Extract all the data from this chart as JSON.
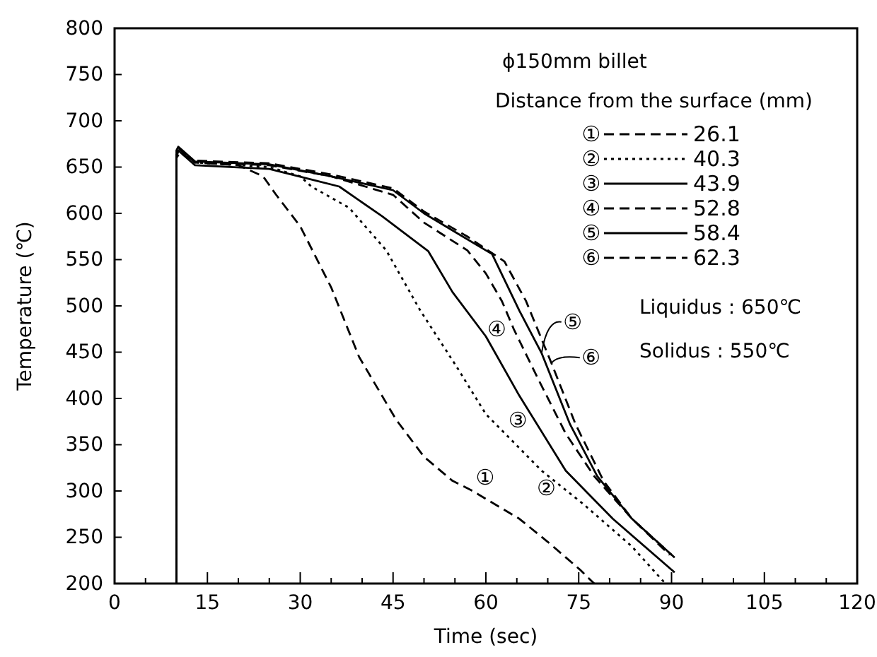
{
  "chart_data": {
    "type": "line",
    "subtitle": "ϕ150mm billet",
    "legend_title": "Distance from the surface (mm)",
    "xlabel": "Time (sec)",
    "ylabel": "Temperature (℃)",
    "xlim": [
      0,
      120
    ],
    "ylim": [
      200,
      800
    ],
    "xticks": [
      0,
      {
        "value": 5,
        "label": null
      },
      {
        "value": 10,
        "label": null
      },
      15,
      {
        "value": 20,
        "label": null
      },
      {
        "value": 25,
        "label": null
      },
      30,
      {
        "value": 35,
        "label": null
      },
      {
        "value": 40,
        "label": null
      },
      45,
      {
        "value": 50,
        "label": null
      },
      {
        "value": 55,
        "label": null
      },
      60,
      {
        "value": 65,
        "label": null
      },
      {
        "value": 70,
        "label": null
      },
      75,
      {
        "value": 80,
        "label": null
      },
      {
        "value": 85,
        "label": null
      },
      90,
      {
        "value": 95,
        "label": null
      },
      {
        "value": 100,
        "label": null
      },
      105,
      {
        "value": 110,
        "label": null
      },
      {
        "value": 115,
        "label": null
      },
      120
    ],
    "yticks": [
      200,
      250,
      300,
      350,
      400,
      450,
      500,
      550,
      600,
      650,
      700,
      750,
      800
    ],
    "grid": false,
    "legend": "top right",
    "marker": "none",
    "series": [
      {
        "name": "26.1",
        "color": "#000000",
        "line_style": "dashed",
        "x": [
          10,
          10,
          10.5,
          13,
          20,
          24,
          26,
          30,
          35,
          39.5,
          45.5,
          50,
          54.6,
          57.6,
          65.4,
          70,
          75.2,
          77.5
        ],
        "values": [
          200,
          665,
          670,
          655,
          652,
          640,
          621,
          586,
          520,
          445,
          377,
          337,
          311,
          301,
          270,
          245,
          215,
          200
        ]
      },
      {
        "name": "40.3",
        "color": "#000000",
        "line_style": "dotted",
        "x": [
          10,
          10,
          10.5,
          13,
          25,
          30,
          31.8,
          37.9,
          43.9,
          49.4,
          55.3,
          60,
          69,
          75.9,
          83.6,
          89
        ],
        "values": [
          200,
          665,
          668,
          655,
          650,
          640,
          629,
          606,
          560,
          495,
          434,
          383,
          322,
          285,
          240,
          200
        ]
      },
      {
        "name": "43.9",
        "color": "#000000",
        "line_style": "solid",
        "x": [
          10,
          10,
          10.3,
          13,
          25,
          36.3,
          43.2,
          50.7,
          54.6,
          60,
          65.4,
          72.9,
          80.5,
          90.5
        ],
        "values": [
          200,
          660,
          668,
          652,
          648,
          629,
          597,
          559,
          515,
          467,
          403,
          322,
          270,
          212
        ]
      },
      {
        "name": "52.8",
        "color": "#000000",
        "line_style": "dashed",
        "x": [
          10,
          10,
          10.4,
          13,
          25,
          35,
          45,
          50,
          57,
          60,
          62.6,
          64.5,
          68.3,
          72.9,
          77.5,
          83.6,
          89.7
        ],
        "values": [
          200,
          662,
          670,
          655,
          652,
          640,
          620,
          590,
          560,
          535,
          505,
          475,
          423,
          362,
          316,
          270,
          231
        ]
      },
      {
        "name": "58.4",
        "color": "#000000",
        "line_style": "solid",
        "x": [
          10,
          10,
          10.3,
          13,
          25,
          35,
          45,
          50,
          55,
          61,
          65.4,
          69,
          73.6,
          78,
          83.6,
          90.5
        ],
        "values": [
          200,
          668,
          672,
          656,
          653,
          640,
          625,
          600,
          580,
          556,
          495,
          449,
          372,
          316,
          270,
          228
        ]
      },
      {
        "name": "62.3",
        "color": "#000000",
        "line_style": "dashed",
        "x": [
          10,
          10,
          10.5,
          13,
          25,
          35,
          45,
          50,
          57,
          63,
          66.5,
          70.6,
          74.5,
          79,
          83.6,
          90
        ],
        "values": [
          200,
          660,
          665,
          657,
          654,
          642,
          627,
          602,
          575,
          548,
          505,
          438,
          372,
          311,
          270,
          231
        ]
      }
    ],
    "annotations": [
      {
        "text": "①",
        "x": 57.6,
        "y": 301
      },
      {
        "text": "②",
        "x": 72.5,
        "y": 303
      },
      {
        "text": "③",
        "x": 67.9,
        "y": 376
      },
      {
        "text": "④",
        "x": 64.5,
        "y": 475
      },
      {
        "text": "⑤",
        "x": 69,
        "y": 449
      },
      {
        "text": "⑥",
        "x": 70.6,
        "y": 438
      },
      "Liquidus : 650℃",
      "Solidus : 550℃"
    ]
  }
}
